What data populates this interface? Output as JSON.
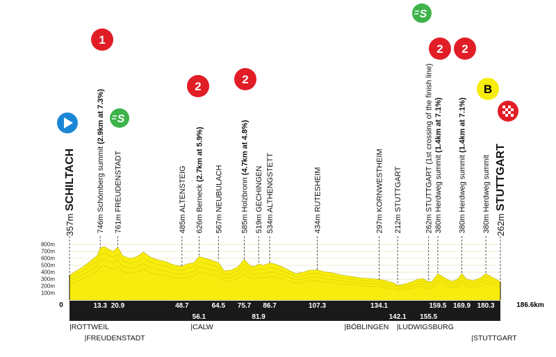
{
  "chart_data": {
    "type": "area",
    "start": {
      "label": "357m",
      "name": "SCHILTACH",
      "km": 0,
      "km_label": "0"
    },
    "finish": {
      "label": "262m",
      "name": "STUTTGART",
      "km": 186.6,
      "km_label": "186.6km"
    },
    "ylim": [
      0,
      900
    ],
    "y_ticks": [
      "100m",
      "200m",
      "300m",
      "400m",
      "500m",
      "600m",
      "700m",
      "800m"
    ],
    "y_tick_values": [
      100,
      200,
      300,
      400,
      500,
      600,
      700,
      800
    ],
    "profile": {
      "x": [
        0,
        3,
        6,
        9,
        12,
        13.3,
        15,
        17,
        19,
        20.9,
        23,
        26,
        29,
        32,
        35,
        38,
        41,
        44,
        46,
        48.7,
        51,
        54,
        56.1,
        59,
        62,
        64.5,
        67,
        70,
        73,
        75.7,
        78,
        80,
        81.9,
        84,
        86.7,
        89,
        92,
        95,
        98,
        101,
        104,
        107.3,
        110,
        114,
        118,
        122,
        126,
        130,
        134.1,
        137,
        140,
        142.1,
        145,
        148,
        151,
        153,
        155.5,
        157,
        159.5,
        162,
        164,
        166,
        168,
        169.9,
        172,
        175,
        178,
        180.3,
        183,
        186.6
      ],
      "y": [
        357,
        420,
        480,
        560,
        640,
        746,
        770,
        730,
        700,
        761,
        640,
        600,
        620,
        690,
        620,
        580,
        560,
        520,
        500,
        485,
        520,
        540,
        626,
        600,
        567,
        540,
        420,
        430,
        480,
        585,
        500,
        480,
        519,
        500,
        534,
        520,
        480,
        430,
        380,
        400,
        430,
        434,
        410,
        390,
        360,
        340,
        320,
        310,
        297,
        280,
        250,
        212,
        230,
        260,
        300,
        310,
        262,
        270,
        380,
        330,
        290,
        270,
        300,
        380,
        300,
        280,
        320,
        380,
        330,
        262
      ]
    },
    "points": [
      {
        "km": 13.3,
        "km_label": "13.3",
        "label": "746m Schömberg summit",
        "bold": "(2.9km at 7.3%)",
        "climb": "1"
      },
      {
        "km": 20.9,
        "km_label": "20.9",
        "label": "761m FREUDENSTADT",
        "bold": "",
        "sprint": "S"
      },
      {
        "km": 48.7,
        "km_label": "48.7",
        "label": "485m ALTENSTEIG",
        "bold": ""
      },
      {
        "km": 56.1,
        "km_label": "56.1",
        "label": "626m Berneck",
        "bold": "(2.7km at 5.9%)",
        "climb": "2"
      },
      {
        "km": 64.5,
        "km_label": "64.5",
        "label": "567m NEUBULACH",
        "bold": ""
      },
      {
        "km": 75.7,
        "km_label": "75.7",
        "label": "585m Holzbronn",
        "bold": "(4.7km at 4.8%)",
        "climb": "2"
      },
      {
        "km": 81.9,
        "km_label": "81.9",
        "label": "519m GECHINGEN",
        "bold": ""
      },
      {
        "km": 86.7,
        "km_label": "86.7",
        "label": "534m ALTHENGSTETT",
        "bold": ""
      },
      {
        "km": 107.3,
        "km_label": "107.3",
        "label": "434m RUTESHEIM",
        "bold": ""
      },
      {
        "km": 134.1,
        "km_label": "134.1",
        "label": "297m KORNWESTHEIM",
        "bold": ""
      },
      {
        "km": 142.1,
        "km_label": "142.1",
        "label": "212m STUTTGART",
        "bold": ""
      },
      {
        "km": 155.5,
        "km_label": "155.5",
        "label": "262m STUTTGART (1st crossing of the finish line)",
        "bold": "",
        "sprint": "S"
      },
      {
        "km": 159.5,
        "km_label": "159.5",
        "label": "380m Herdweg summit",
        "bold": "(1.4km at 7.1%)",
        "climb": "2"
      },
      {
        "km": 169.9,
        "km_label": "169.9",
        "label": "380m Herdweg summit",
        "bold": "(1.4km at 7.1%)",
        "climb": "2"
      },
      {
        "km": 180.3,
        "km_label": "180.3",
        "label": "380m Herdweg summit",
        "bold": "",
        "bonus": "B"
      }
    ],
    "regions": [
      {
        "name": "ROTTWEIL",
        "km": 0
      },
      {
        "name": "FREUDENSTADT",
        "km": 6.5
      },
      {
        "name": "CALW",
        "km": 52.5
      },
      {
        "name": "BÖBLINGEN",
        "km": 119
      },
      {
        "name": "LUDWIGSBURG",
        "km": 141.7
      },
      {
        "name": "STUTTGART",
        "km": 174
      }
    ],
    "colors": {
      "profile": "#f7ec0d",
      "climb": "#e11d26",
      "sprint": "#3db34a",
      "start": "#1a87d6",
      "bonus": "#f7ec0d",
      "bar": "#1a1a1a"
    }
  }
}
